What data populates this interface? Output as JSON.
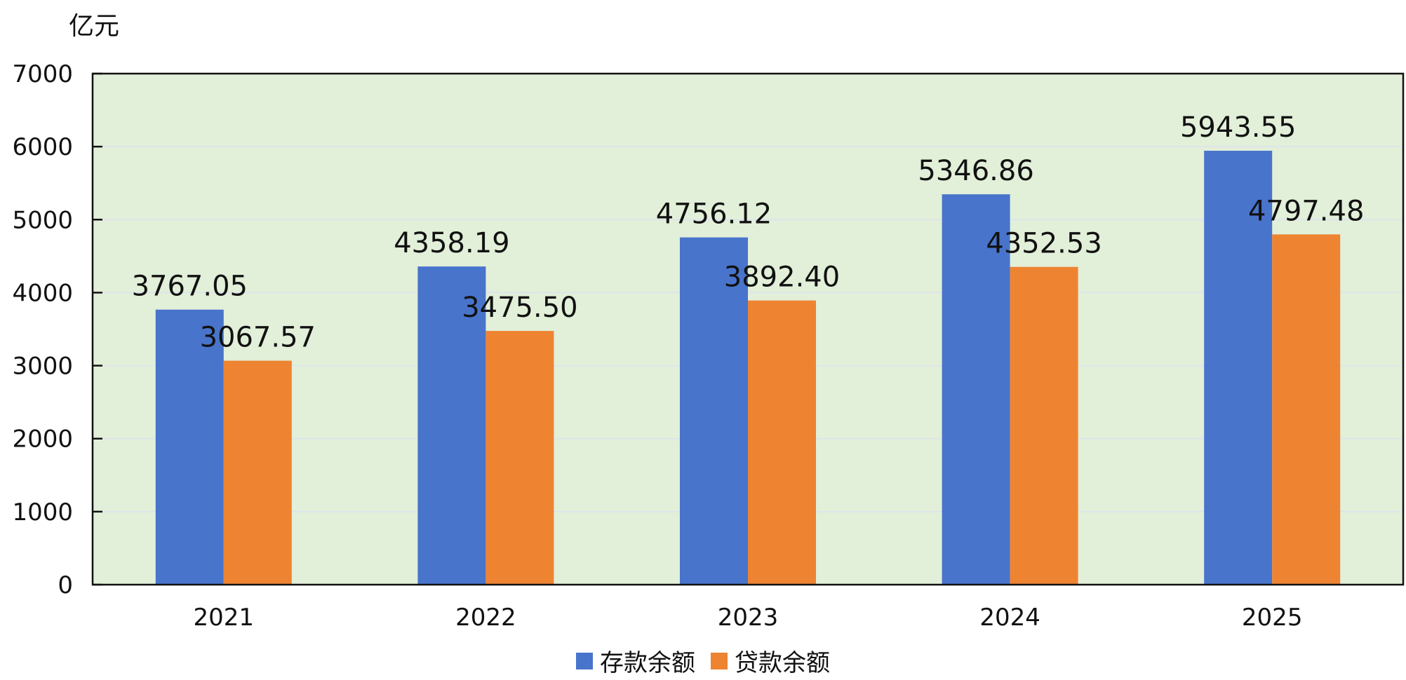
{
  "chart_data": {
    "type": "bar",
    "unit": "亿元",
    "categories": [
      "2021",
      "2022",
      "2023",
      "2024",
      "2025"
    ],
    "series": [
      {
        "name": "存款余额",
        "color": "#4874CB",
        "values": [
          3767.05,
          4358.19,
          4756.12,
          5346.86,
          5943.55
        ],
        "labels": [
          "3767.05",
          "4358.19",
          "4756.12",
          "5346.86",
          "5943.55"
        ]
      },
      {
        "name": "贷款余额",
        "color": "#EE8432",
        "values": [
          3067.57,
          3475.5,
          3892.4,
          4352.53,
          4797.48
        ],
        "labels": [
          "3067.57",
          "3475.50",
          "3892.40",
          "4352.53",
          "4797.48"
        ]
      }
    ],
    "ylim": [
      0,
      7000
    ],
    "yticks": [
      "0",
      "1000",
      "2000",
      "3000",
      "4000",
      "5000",
      "6000",
      "7000"
    ],
    "grid": true,
    "plot_background": "#E2EFD9",
    "legend_position": "bottom"
  }
}
